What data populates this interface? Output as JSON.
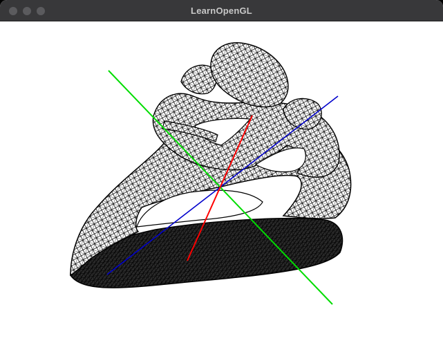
{
  "window": {
    "title": "LearnOpenGL"
  },
  "viewport": {
    "model": "wireframe-sculpture",
    "background_color": "#ffffff",
    "wire_color": "#000000",
    "axes": [
      {
        "name": "x-axis",
        "color": "#ff0000"
      },
      {
        "name": "y-axis",
        "color": "#00dd00"
      },
      {
        "name": "z-axis",
        "color": "#0000cc"
      }
    ]
  }
}
